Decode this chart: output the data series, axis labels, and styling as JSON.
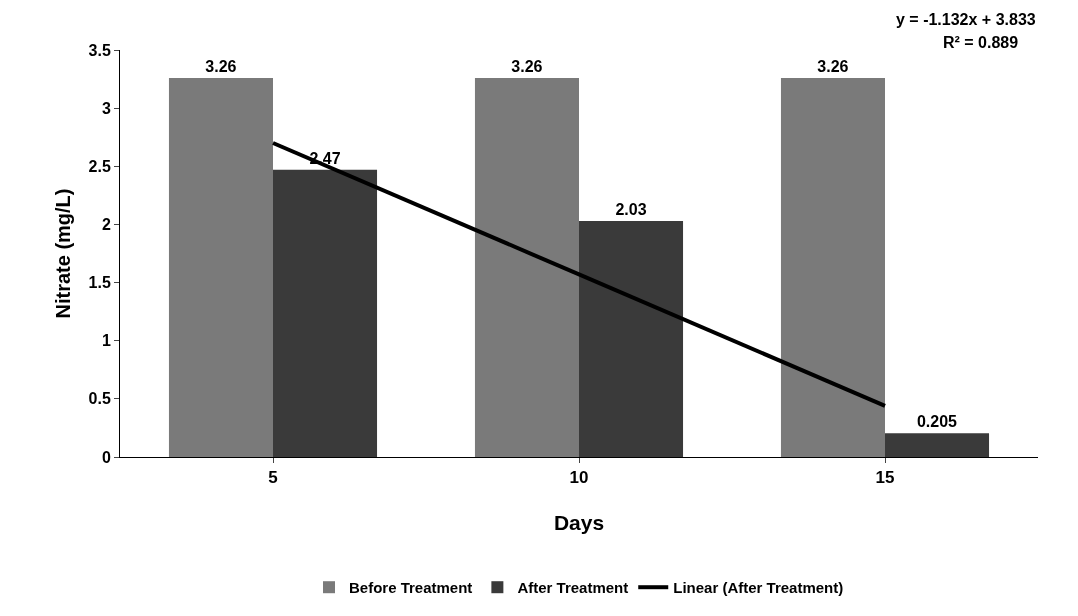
{
  "chart_data": {
    "type": "bar",
    "xlabel": "Days",
    "ylabel": "Nitrate (mg/L)",
    "categories": [
      "5",
      "10",
      "15"
    ],
    "series": [
      {
        "name": "Before Treatment",
        "color": "#7a7a7a",
        "values": [
          3.26,
          3.26,
          3.26
        ],
        "value_labels": [
          "3.26",
          "3.26",
          "3.26"
        ]
      },
      {
        "name": "After Treatment",
        "color": "#3a3a3a",
        "values": [
          2.47,
          2.03,
          0.205
        ],
        "value_labels": [
          "2.47",
          "2.03",
          "0.205"
        ]
      },
      {
        "name": "Linear (After Treatment)",
        "type": "line",
        "color": "#000000",
        "values": [
          2.7,
          1.57,
          0.44
        ]
      }
    ],
    "annotations": [
      "y = -1.132x + 3.833",
      "R² = 0.889"
    ],
    "ylim": [
      0,
      3.5
    ],
    "yticks": [
      0,
      0.5,
      1,
      1.5,
      2,
      2.5,
      3,
      3.5
    ],
    "legend": "bottom",
    "marker": "none",
    "line_style": "solid"
  }
}
